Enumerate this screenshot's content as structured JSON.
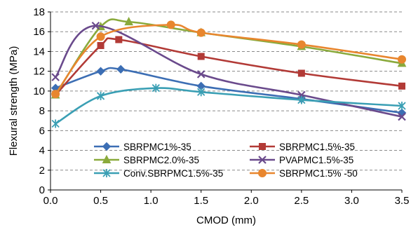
{
  "chart_data": {
    "type": "line",
    "title": "",
    "xlabel": "CMOD (mm)",
    "ylabel": "Flexural strength (MPa)",
    "xlim": [
      0,
      3.5
    ],
    "ylim": [
      0,
      18
    ],
    "x_ticks": [
      "0.0",
      "0.5",
      "1.0",
      "1.5",
      "2.0",
      "2.5",
      "3.0",
      "3.5"
    ],
    "y_ticks": [
      "0",
      "2",
      "4",
      "6",
      "8",
      "10",
      "12",
      "14",
      "16",
      "18"
    ],
    "grid": "horizontal dashed",
    "legend_placement": "bottom-center",
    "series": [
      {
        "name": "SBRPMC1%-35",
        "color": "#3c6eb4",
        "marker": "diamond",
        "x": [
          0.05,
          0.5,
          0.7,
          1.5,
          2.5,
          3.5
        ],
        "y": [
          10.3,
          12.0,
          12.2,
          10.5,
          9.2,
          7.8
        ]
      },
      {
        "name": "SBRPMC1.5%-35",
        "color": "#b23a36",
        "marker": "square",
        "x": [
          0.05,
          0.5,
          0.68,
          1.5,
          2.5,
          3.5
        ],
        "y": [
          9.6,
          14.6,
          15.2,
          13.5,
          11.8,
          10.5
        ]
      },
      {
        "name": "SBRPMC2.0%-35",
        "color": "#8aaa3c",
        "marker": "triangle",
        "x": [
          0.05,
          0.5,
          0.78,
          1.5,
          2.5,
          3.5
        ],
        "y": [
          9.6,
          16.5,
          17.0,
          15.9,
          14.5,
          12.8
        ]
      },
      {
        "name": "PVAPMC1.5%-35",
        "color": "#6a4a8c",
        "marker": "x",
        "x": [
          0.05,
          0.45,
          1.5,
          2.5,
          3.5
        ],
        "y": [
          11.4,
          16.6,
          11.7,
          9.6,
          7.4
        ]
      },
      {
        "name": "Conv.SBRPMC1.5%-35",
        "color": "#3a9fb4",
        "marker": "star",
        "x": [
          0.05,
          0.5,
          1.05,
          1.5,
          2.5,
          3.5
        ],
        "y": [
          6.7,
          9.5,
          10.3,
          9.9,
          9.1,
          8.5
        ]
      },
      {
        "name": "SBRPMC1.5% -50",
        "color": "#e8862e",
        "marker": "circle",
        "x": [
          0.05,
          0.5,
          1.2,
          1.5,
          2.5,
          3.5
        ],
        "y": [
          9.7,
          15.5,
          16.7,
          15.9,
          14.7,
          13.2
        ]
      }
    ]
  }
}
